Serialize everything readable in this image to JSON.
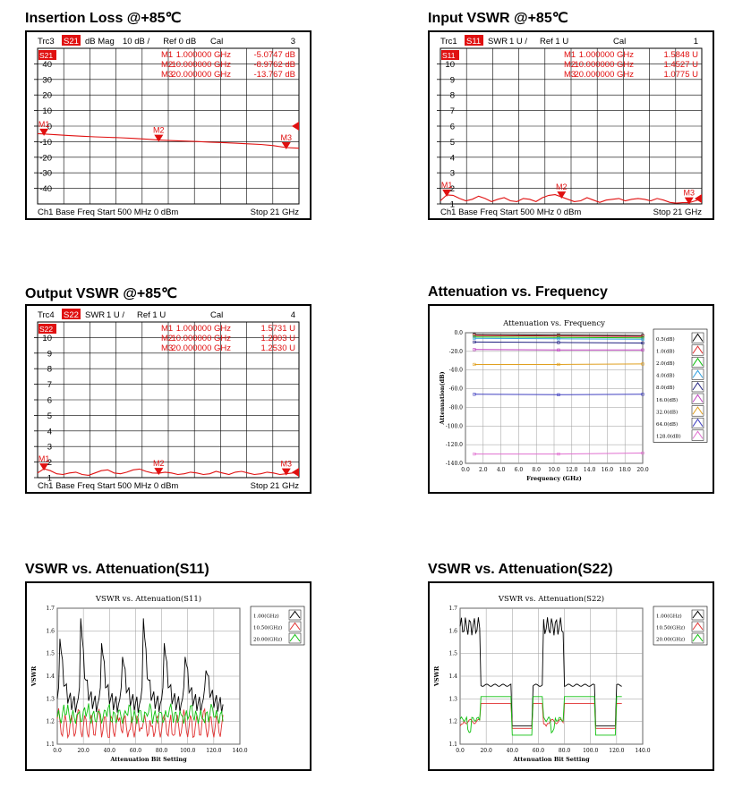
{
  "panels": [
    {
      "title": "Insertion Loss @+85℃",
      "chart_data": {
        "type": "line",
        "trace": "Trc3",
        "param": "S21",
        "format": "dB Mag",
        "scale": "10 dB /",
        "ref": "Ref 0 dB",
        "cal": "Cal",
        "trace_no": "3",
        "ref_badge": "S21",
        "yticks": [
          "40",
          "30",
          "20",
          "10",
          "0",
          "-10",
          "-20",
          "-30",
          "-40"
        ],
        "ylim": [
          -50,
          50
        ],
        "xlim": [
          0.5,
          21
        ],
        "footer_left": "Ch1  Base Freq  Start  500 MHz  0 dBm",
        "footer_right": "Stop  21 GHz",
        "markers": [
          {
            "name": "M1",
            "label": "M1",
            "freq": "1.000000 GHz",
            "value": "-5.0747 dB",
            "x": 1.0,
            "y": -5.07
          },
          {
            "name": "M2",
            "label": "M2",
            "freq": "10.000000 GHz",
            "value": "-8.9762 dB",
            "x": 10.0,
            "y": -8.98
          },
          {
            "name": "M3",
            "label": "M3",
            "freq": "20.000000 GHz",
            "value": "-13.767 dB",
            "x": 20.0,
            "y": -13.77
          }
        ],
        "trace_x": [
          0.5,
          1,
          2,
          3,
          4,
          5,
          6,
          7,
          8,
          9,
          10,
          11,
          12,
          13,
          14,
          15,
          16,
          17,
          18,
          19,
          20,
          21
        ],
        "trace_y": [
          -4.8,
          -5.07,
          -5.6,
          -6.1,
          -6.5,
          -6.9,
          -7.2,
          -7.5,
          -7.9,
          -8.4,
          -8.98,
          -9.3,
          -9.6,
          -9.9,
          -10.3,
          -10.6,
          -11.0,
          -11.4,
          -11.8,
          -12.5,
          -13.77,
          -14.2
        ]
      }
    },
    {
      "title": "Input VSWR @+85℃",
      "chart_data": {
        "type": "line",
        "trace": "Trc1",
        "param": "S11",
        "format": "SWR",
        "scale": "1 U /",
        "ref": "Ref 1 U",
        "cal": "Cal",
        "trace_no": "1",
        "ref_badge": "S11",
        "yticks": [
          "10",
          "9",
          "8",
          "7",
          "6",
          "5",
          "4",
          "3",
          "2",
          "1"
        ],
        "ylim": [
          1,
          11
        ],
        "xlim": [
          0.5,
          21
        ],
        "footer_left": "Ch1  Base Freq  Start  500 MHz  0 dBm",
        "footer_right": "Stop  21 GHz",
        "markers": [
          {
            "name": "M1",
            "label": "M1",
            "freq": "1.000000 GHz",
            "value": "1.5848  U",
            "x": 1.0,
            "y": 1.58
          },
          {
            "name": "M2",
            "label": "M2",
            "freq": "10.000000 GHz",
            "value": "1.4527  U",
            "x": 10.0,
            "y": 1.45
          },
          {
            "name": "M3",
            "label": "M3",
            "freq": "20.000000 GHz",
            "value": "1.0775  U",
            "x": 20.0,
            "y": 1.08
          }
        ],
        "trace_x": [
          0.5,
          1,
          1.5,
          2,
          2.5,
          3,
          3.5,
          4,
          4.5,
          5,
          5.5,
          6,
          6.5,
          7,
          7.5,
          8,
          8.5,
          9,
          9.5,
          10,
          10.5,
          11,
          11.5,
          12,
          12.5,
          13,
          13.5,
          14,
          14.5,
          15,
          15.5,
          16,
          16.5,
          17,
          17.5,
          18,
          18.5,
          19,
          19.5,
          20,
          20.5,
          21
        ],
        "trace_y": [
          1.2,
          1.58,
          1.55,
          1.35,
          1.2,
          1.3,
          1.5,
          1.35,
          1.15,
          1.3,
          1.4,
          1.2,
          1.15,
          1.35,
          1.3,
          1.15,
          1.4,
          1.55,
          1.6,
          1.45,
          1.3,
          1.15,
          1.2,
          1.4,
          1.25,
          1.1,
          1.25,
          1.3,
          1.35,
          1.2,
          1.3,
          1.35,
          1.3,
          1.2,
          1.35,
          1.25,
          1.1,
          1.05,
          1.08,
          1.08,
          1.2,
          1.35
        ]
      }
    },
    {
      "title": "Output VSWR @+85℃",
      "chart_data": {
        "type": "line",
        "trace": "Trc4",
        "param": "S22",
        "format": "SWR",
        "scale": "1 U /",
        "ref": "Ref 1 U",
        "cal": "Cal",
        "trace_no": "4",
        "ref_badge": "S22",
        "yticks": [
          "10",
          "9",
          "8",
          "7",
          "6",
          "5",
          "4",
          "3",
          "2",
          "1"
        ],
        "ylim": [
          1,
          11
        ],
        "xlim": [
          0.5,
          21
        ],
        "footer_left": "Ch1  Base Freq  Start  500 MHz  0 dBm",
        "footer_right": "Stop  21 GHz",
        "markers": [
          {
            "name": "M1",
            "label": "M1",
            "freq": "1.000000 GHz",
            "value": "1.5731  U",
            "x": 1.0,
            "y": 1.57
          },
          {
            "name": "M2",
            "label": "M2",
            "freq": "10.000000 GHz",
            "value": "1.2803  U",
            "x": 10.0,
            "y": 1.28
          },
          {
            "name": "M3",
            "label": "M3",
            "freq": "20.000000 GHz",
            "value": "1.2530  U",
            "x": 20.0,
            "y": 1.25
          }
        ],
        "trace_x": [
          0.5,
          1,
          1.5,
          2,
          2.5,
          3,
          3.5,
          4,
          4.5,
          5,
          5.5,
          6,
          6.5,
          7,
          7.5,
          8,
          8.5,
          9,
          9.5,
          10,
          10.5,
          11,
          11.5,
          12,
          12.5,
          13,
          13.5,
          14,
          14.5,
          15,
          15.5,
          16,
          16.5,
          17,
          17.5,
          18,
          18.5,
          19,
          19.5,
          20,
          20.5,
          21
        ],
        "trace_y": [
          1.3,
          1.57,
          1.45,
          1.25,
          1.2,
          1.3,
          1.35,
          1.2,
          1.15,
          1.3,
          1.45,
          1.5,
          1.3,
          1.25,
          1.35,
          1.5,
          1.55,
          1.4,
          1.3,
          1.28,
          1.35,
          1.3,
          1.2,
          1.25,
          1.35,
          1.3,
          1.2,
          1.25,
          1.4,
          1.3,
          1.2,
          1.35,
          1.4,
          1.3,
          1.2,
          1.25,
          1.35,
          1.3,
          1.2,
          1.25,
          1.3,
          1.35
        ]
      }
    },
    {
      "title": "Attenuation vs. Frequency",
      "chart_data": {
        "type": "line",
        "title": "Attenuation vs. Frequency",
        "xlabel": "Frequency (GHz)",
        "ylabel": "Attenuation(dB)",
        "xlim": [
          0,
          20
        ],
        "ylim": [
          -140,
          0
        ],
        "xticks": [
          "0.0",
          "2.0",
          "4.0",
          "6.0",
          "8.0",
          "10.0",
          "12.0",
          "14.0",
          "16.0",
          "18.0",
          "20.0"
        ],
        "yticks": [
          "0.0",
          "-20.0",
          "-40.0",
          "-60.0",
          "-80.0",
          "-100.0",
          "-120.0",
          "-140.0"
        ],
        "legend_position": "right",
        "grid": true,
        "series": [
          {
            "name": "0.5(dB)",
            "color": "#000000",
            "x": [
              1,
              10.5,
              20
            ],
            "values": [
              -2.0,
              -2.5,
              -3.0
            ]
          },
          {
            "name": "1.0(dB)",
            "color": "#e03030",
            "x": [
              1,
              10.5,
              20
            ],
            "values": [
              -3.0,
              -3.5,
              -4.0
            ]
          },
          {
            "name": "2.0(dB)",
            "color": "#10c010",
            "x": [
              1,
              10.5,
              20
            ],
            "values": [
              -4.5,
              -5.0,
              -5.5
            ]
          },
          {
            "name": "4.0(dB)",
            "color": "#30a0e0",
            "x": [
              1,
              10.5,
              20
            ],
            "values": [
              -6.0,
              -6.5,
              -7.0
            ]
          },
          {
            "name": "8.0(dB)",
            "color": "#202080",
            "x": [
              1,
              10.5,
              20
            ],
            "values": [
              -10.0,
              -10.5,
              -11.0
            ]
          },
          {
            "name": "16.0(dB)",
            "color": "#c040c0",
            "x": [
              1,
              10.5,
              20
            ],
            "values": [
              -18.0,
              -18.5,
              -18.5
            ]
          },
          {
            "name": "32.0(dB)",
            "color": "#e0a020",
            "x": [
              1,
              10.5,
              20
            ],
            "values": [
              -34.0,
              -34.0,
              -33.5
            ]
          },
          {
            "name": "64.0(dB)",
            "color": "#4040c0",
            "x": [
              1,
              10.5,
              20
            ],
            "values": [
              -66.0,
              -66.5,
              -66.0
            ]
          },
          {
            "name": "128.0(dB)",
            "color": "#e070d0",
            "x": [
              1,
              10.5,
              20
            ],
            "values": [
              -130.0,
              -130.0,
              -129.0
            ]
          }
        ]
      }
    },
    {
      "title": "VSWR vs. Attenuation(S11)",
      "chart_data": {
        "type": "line",
        "title": "VSWR vs. Attenuation(S11)",
        "xlabel": "Attenuation Bit Setting",
        "ylabel": "VSWR",
        "xlim": [
          0,
          140
        ],
        "ylim": [
          1.1,
          1.7
        ],
        "xticks": [
          "0.0",
          "20.0",
          "40.0",
          "60.0",
          "80.0",
          "100.0",
          "120.0",
          "140.0"
        ],
        "yticks": [
          "1.7",
          "1.6",
          "1.5",
          "1.4",
          "1.3",
          "1.2",
          "1.1"
        ],
        "legend_position": "top-right",
        "grid": true,
        "series": [
          {
            "name": "1.00(GHz)",
            "color": "#000000",
            "pattern": "s11-black"
          },
          {
            "name": "10.50(GHz)",
            "color": "#e03030",
            "pattern": "s11-red"
          },
          {
            "name": "20.00(GHz)",
            "color": "#10c010",
            "pattern": "s11-green"
          }
        ]
      }
    },
    {
      "title": "VSWR vs. Attenuation(S22)",
      "chart_data": {
        "type": "line",
        "title": "VSWR vs. Attenuation(S22)",
        "xlabel": "Attenuation Bit Setting",
        "ylabel": "VSWR",
        "xlim": [
          0,
          140
        ],
        "ylim": [
          1.1,
          1.7
        ],
        "xticks": [
          "0.0",
          "20.0",
          "40.0",
          "60.0",
          "80.0",
          "100.0",
          "120.0",
          "140.0"
        ],
        "yticks": [
          "1.7",
          "1.6",
          "1.5",
          "1.4",
          "1.3",
          "1.2",
          "1.1"
        ],
        "legend_position": "top-right",
        "grid": true,
        "series": [
          {
            "name": "1.00(GHz)",
            "color": "#000000",
            "pattern": "s22-black"
          },
          {
            "name": "10.50(GHz)",
            "color": "#e03030",
            "pattern": "s22-red"
          },
          {
            "name": "20.00(GHz)",
            "color": "#10c010",
            "pattern": "s22-green"
          }
        ]
      }
    }
  ]
}
